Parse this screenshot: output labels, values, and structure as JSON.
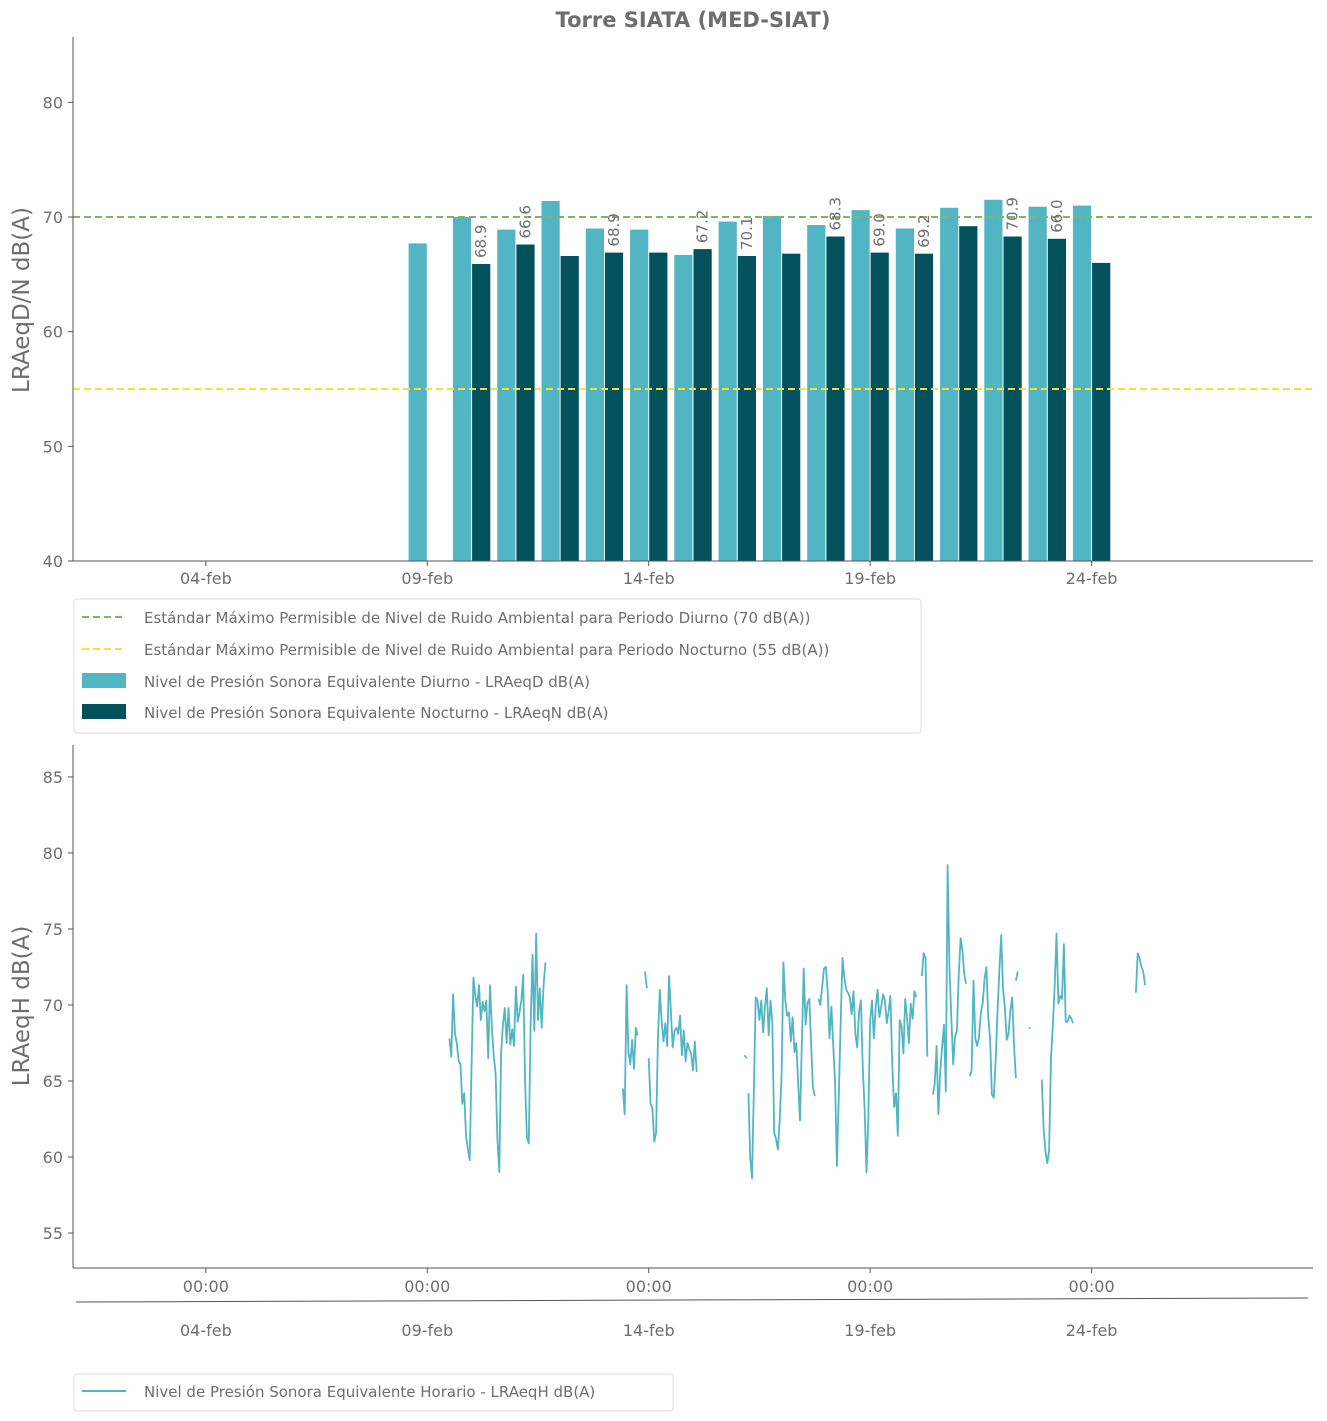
{
  "chart_data": [
    {
      "type": "bar",
      "title": "Torre SIATA (MED-SIAT)",
      "xlabel": "",
      "ylabel": "LRAeqD/N dB(A)",
      "ylim": [
        40,
        85.7
      ],
      "yticks": [
        "40",
        "50",
        "60",
        "70",
        "80"
      ],
      "xlim": [
        "2024-02-01",
        "2024-02-29"
      ],
      "xticks": [
        {
          "date": "2024-02-04",
          "label": "04-feb"
        },
        {
          "date": "2024-02-09",
          "label": "09-feb"
        },
        {
          "date": "2024-02-14",
          "label": "14-feb"
        },
        {
          "date": "2024-02-19",
          "label": "19-feb"
        },
        {
          "date": "2024-02-24",
          "label": "24-feb"
        }
      ],
      "dates": [
        "2024-02-09",
        "2024-02-10",
        "2024-02-11",
        "2024-02-12",
        "2024-02-13",
        "2024-02-14",
        "2024-02-15",
        "2024-02-16",
        "2024-02-17",
        "2024-02-18",
        "2024-02-19",
        "2024-02-20",
        "2024-02-21",
        "2024-02-22",
        "2024-02-23",
        "2024-02-24"
      ],
      "series": [
        {
          "name": "Nivel de Presión Sonora Equivalente Diurno - LRAeqD dB(A)",
          "color": "#52b5c3",
          "values": [
            67.7,
            70.0,
            68.9,
            71.4,
            69.0,
            68.9,
            66.7,
            69.6,
            70.1,
            69.3,
            70.6,
            69.0,
            70.8,
            71.5,
            70.9,
            71.0
          ]
        },
        {
          "name": "Nivel de Presión Sonora Equivalente Nocturno - LRAeqN dB(A)",
          "color": "#02515c",
          "values": [
            null,
            65.9,
            67.6,
            66.6,
            66.9,
            66.9,
            67.2,
            66.6,
            66.8,
            68.3,
            66.9,
            66.8,
            69.2,
            68.3,
            68.1,
            66.0
          ]
        }
      ],
      "data_labels": [
        {
          "date": "2024-02-10",
          "text": "68.9"
        },
        {
          "date": "2024-02-11",
          "text": "66.6"
        },
        {
          "date": "2024-02-13",
          "text": "68.9"
        },
        {
          "date": "2024-02-15",
          "text": "67.2"
        },
        {
          "date": "2024-02-16",
          "text": "70.1"
        },
        {
          "date": "2024-02-18",
          "text": "68.3"
        },
        {
          "date": "2024-02-19",
          "text": "69.0"
        },
        {
          "date": "2024-02-20",
          "text": "69.2"
        },
        {
          "date": "2024-02-22",
          "text": "70.9"
        },
        {
          "date": "2024-02-23",
          "text": "66.0"
        }
      ],
      "reference_lines": [
        {
          "name": "Estándar Máximo Permisible de Nivel de Ruido Ambiental para Periodo Diurno (70 dB(A))",
          "value": 70,
          "color": "#82b366"
        },
        {
          "name": "Estándar Máximo Permisible de Nivel de Ruido Ambiental para Periodo Nocturno (55 dB(A))",
          "value": 55,
          "color": "#f5e236"
        }
      ],
      "legend": "below",
      "grid": false
    },
    {
      "type": "line",
      "title": "",
      "xlabel": "",
      "ylabel": "LRAeqH dB(A)",
      "ylim": [
        52.7,
        87.1
      ],
      "yticks": [
        "55",
        "60",
        "65",
        "70",
        "75",
        "80",
        "85"
      ],
      "xlim": [
        "2024-02-01",
        "2024-02-29"
      ],
      "xticks": [
        {
          "date": "2024-02-04",
          "label": "00:00",
          "label2": "04-feb"
        },
        {
          "date": "2024-02-09",
          "label": "00:00",
          "label2": "09-feb"
        },
        {
          "date": "2024-02-14",
          "label": "00:00",
          "label2": "14-feb"
        },
        {
          "date": "2024-02-19",
          "label": "00:00",
          "label2": "19-feb"
        },
        {
          "date": "2024-02-24",
          "label": "00:00",
          "label2": "24-feb"
        }
      ],
      "series": [
        {
          "name": "Nivel de Presión Sonora Equivalente Horario - LRAeqH dB(A)",
          "color": "#52b5c3",
          "segments": [
            {
              "start": "2024-02-09T12:00",
              "values": [
                67.8,
                66.6,
                70.7,
                68.1,
                67.5,
                66.3,
                66.1,
                63.5,
                64.2,
                61.4,
                60.5,
                59.8,
                66.1,
                71.8,
                70.6,
                69.9,
                71.3,
                69.0,
                70.2,
                69.6,
                70.3,
                66.5,
                71.3,
                68.5,
                66.7,
                65.5,
                61.2,
                59.0,
                66.8,
                68.7,
                69.8,
                67.5,
                69.8,
                67.4,
                68.4,
                67.3,
                71.2,
                68.9,
                69.5,
                70.3,
                72.0,
                64.9,
                61.3,
                60.9,
                68.6,
                73.3,
                68.3,
                74.7,
                69.0,
                71.1,
                68.5,
                71.2,
                72.8
              ]
            },
            {
              "start": "2024-02-13T10:00",
              "values": [
                64.5,
                62.8,
                71.3,
                66.9,
                66.1,
                67.7,
                65.8,
                68.5,
                68.0
              ]
            },
            {
              "start": "2024-02-13T22:00",
              "values": [
                72.2,
                71.1
              ]
            },
            {
              "start": "2024-02-14T00:00",
              "values": [
                66.5,
                63.5,
                63.2,
                61.0,
                61.6,
                67.7,
                71.0,
                69.0,
                67.6,
                68.8,
                67.3,
                71.9,
                69.6,
                67.2,
                68.3,
                68.5,
                68.1,
                69.3,
                66.7,
                68.3,
                66.3,
                67.5,
                67.1,
                66.8,
                65.7,
                67.6,
                65.6
              ]
            },
            {
              "start": "2024-02-16T04:00",
              "values": [
                66.7,
                66.5
              ]
            },
            {
              "start": "2024-02-16T06:00",
              "values": [
                64.2,
                60.0,
                58.6,
                64.5,
                70.5,
                70.3,
                69.0,
                70.3,
                68.2,
                69.9,
                71.1,
                68.0,
                70.3,
                68.9,
                61.6,
                61.2,
                60.5,
                62.4,
                65.4,
                72.8,
                70.3,
                69.3,
                69.5,
                67.6,
                69.2,
                66.9,
                67.5,
                64.8,
                62.4,
                67.6,
                72.4,
                68.7,
                70.1,
                70.4,
                67.5,
                64.6,
                64.0
              ]
            },
            {
              "start": "2024-02-17T20:00",
              "values": [
                70.4,
                70.0,
                71.2,
                72.4,
                72.5,
                70.9,
                67.8,
                69.9,
                67.4,
                64.9,
                59.4,
                64.0,
                68.7,
                73.1,
                71.8,
                71.0,
                70.8,
                70.5,
                69.4,
                70.9,
                68.1,
                67.2,
                69.6,
                70.3,
                65.8,
                63.2,
                59.0,
                62.5,
                68.9,
                70.3,
                67.8,
                69.8,
                71.0,
                69.2,
                69.9,
                70.7,
                70.3,
                68.8,
                69.6,
                70.6,
                66.0,
                63.3,
                64.2,
                61.4,
                69.0,
                68.6,
                66.8,
                70.4,
                69.2,
                67.5,
                70.1,
                69.1,
                70.9,
                70.5
              ]
            },
            {
              "start": "2024-02-20T04:00",
              "values": [
                71.9,
                73.4,
                73.1,
                66.6
              ]
            },
            {
              "start": "2024-02-20T10:00",
              "values": [
                64.1,
                64.8,
                67.3,
                62.8,
                65.7,
                67.2,
                68.7,
                64.3,
                79.2,
                72.4,
                69.2,
                66.1,
                67.9,
                68.3,
                71.9,
                74.4,
                73.6,
                72.0,
                71.4
              ]
            },
            {
              "start": "2024-02-21T06:00",
              "values": [
                65.3,
                65.7,
                71.6,
                67.8,
                67.3,
                67.9,
                69.5,
                70.1,
                71.7,
                72.5,
                69.3,
                67.8,
                64.1,
                63.9,
                66.3,
                69.5,
                72.2,
                74.6,
                71.1,
                69.9,
                67.7,
                68.1,
                69.7,
                70.5,
                67.2,
                65.2
              ]
            },
            {
              "start": "2024-02-22T07:00",
              "values": [
                71.6,
                72.2
              ]
            },
            {
              "start": "2024-02-22T14:00",
              "values": [
                68.5,
                68.5
              ]
            },
            {
              "start": "2024-02-22T21:00",
              "values": [
                65.1,
                61.9,
                60.4,
                59.6,
                60.4,
                66.5,
                68.6,
                71.3,
                74.7,
                70.1,
                70.6,
                70.4,
                74.0,
                68.9,
                68.9,
                69.3,
                69.1,
                68.8
              ]
            },
            {
              "start": "2024-02-25T00:00",
              "values": [
                70.8,
                73.4,
                73.1,
                72.5,
                72.2,
                71.3
              ]
            }
          ]
        }
      ],
      "legend": "below",
      "grid": false
    }
  ]
}
